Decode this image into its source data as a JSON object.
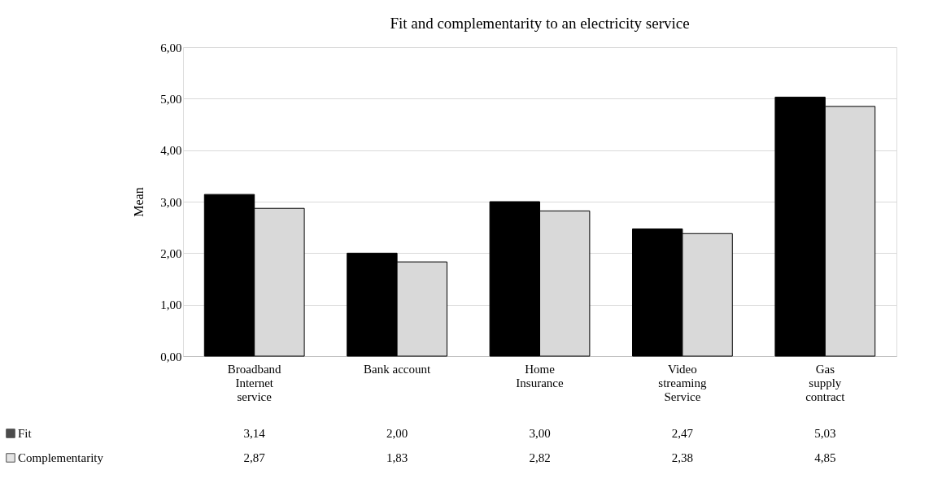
{
  "chart_data": {
    "type": "bar",
    "title": "Fit and complementarity to an electricity service",
    "ylabel": "Mean",
    "categories": [
      "Broadband Internet service",
      "Bank account",
      "Home Insurance",
      "Video streaming Service",
      "Gas supply contract"
    ],
    "series": [
      {
        "name": "Fit",
        "color": "#000000",
        "values": [
          3.14,
          2.0,
          3.0,
          2.47,
          5.03
        ],
        "value_labels": [
          "3,14",
          "2,00",
          "3,00",
          "2,47",
          "5,03"
        ]
      },
      {
        "name": "Complementarity",
        "color": "#d9d9d9",
        "values": [
          2.87,
          1.83,
          2.82,
          2.38,
          4.85
        ],
        "value_labels": [
          "2,87",
          "1,83",
          "2,82",
          "2,38",
          "4,85"
        ]
      }
    ],
    "ylim": [
      0,
      6
    ],
    "yticks": [
      {
        "value": 0,
        "label": "0,00"
      },
      {
        "value": 1,
        "label": "1,00"
      },
      {
        "value": 2,
        "label": "2,00"
      },
      {
        "value": 3,
        "label": "3,00"
      },
      {
        "value": 4,
        "label": "4,00"
      },
      {
        "value": 5,
        "label": "5,00"
      },
      {
        "value": 6,
        "label": "6,00"
      }
    ],
    "grid": "y",
    "legend": "bottom"
  }
}
